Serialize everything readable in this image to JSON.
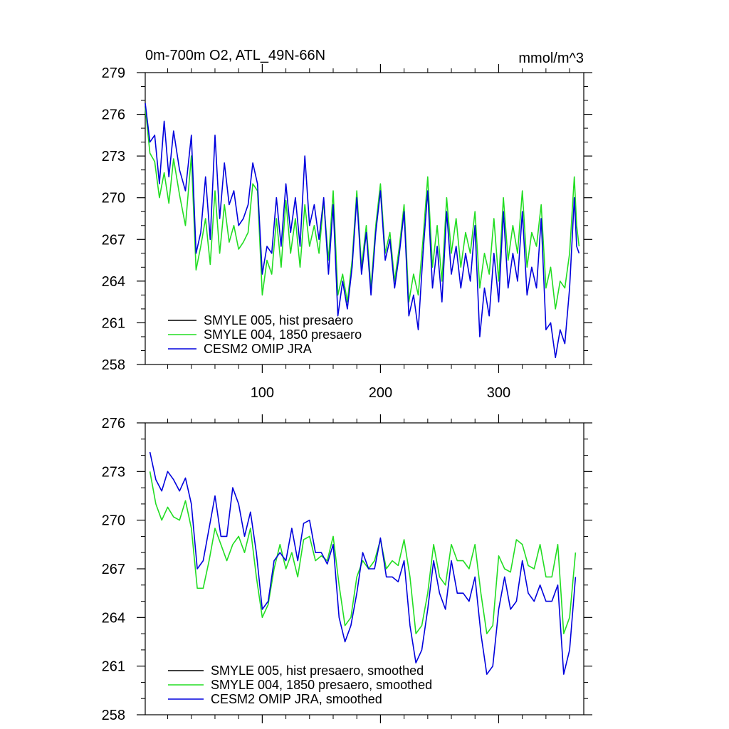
{
  "chart_data": [
    {
      "type": "line",
      "title": "0m-700m O2, ATL_49N-66N",
      "units_label": "mmol/m^3",
      "xlabel": "",
      "ylabel": "",
      "xlim": [
        1,
        372
      ],
      "ylim": [
        258,
        279
      ],
      "x_ticks": [
        100,
        200,
        300
      ],
      "x_tick_labels": [
        "100",
        "200",
        "300"
      ],
      "y_ticks": [
        279,
        276,
        273,
        270,
        267,
        264,
        261,
        258
      ],
      "y_tick_labels": [
        "279",
        "276",
        "273",
        "270",
        "267",
        "264",
        "261",
        "258"
      ],
      "legend_position": "bottom-left",
      "series": [
        {
          "name": "SMYLE 005, hist presaero",
          "color": "#000000",
          "x": [],
          "values": []
        },
        {
          "name": "SMYLE 004, 1850 presaero",
          "color": "#22dd22",
          "x": [
            1,
            5,
            9,
            13,
            17,
            21,
            25,
            30,
            35,
            40,
            44,
            48,
            52,
            56,
            60,
            64,
            68,
            72,
            76,
            80,
            84,
            88,
            92,
            96,
            100,
            104,
            108,
            112,
            116,
            120,
            124,
            128,
            132,
            136,
            140,
            144,
            148,
            152,
            156,
            160,
            164,
            168,
            172,
            176,
            180,
            184,
            188,
            192,
            196,
            200,
            204,
            208,
            212,
            216,
            220,
            224,
            228,
            232,
            236,
            240,
            244,
            248,
            252,
            256,
            260,
            264,
            268,
            272,
            276,
            280,
            284,
            288,
            292,
            296,
            300,
            304,
            308,
            312,
            316,
            320,
            324,
            328,
            332,
            336,
            340,
            344,
            348,
            352,
            356,
            360,
            364,
            366,
            368
          ],
          "values": [
            276.5,
            273.2,
            272.6,
            270.0,
            271.8,
            269.6,
            272.8,
            270.2,
            268.0,
            273.0,
            264.8,
            266.5,
            268.5,
            265.2,
            270.5,
            266.0,
            269.5,
            266.8,
            268.0,
            266.3,
            266.8,
            267.5,
            271.0,
            270.5,
            263.0,
            265.5,
            264.5,
            268.5,
            265.0,
            269.8,
            266.0,
            268.5,
            265.0,
            269.5,
            266.5,
            268.0,
            266.0,
            269.8,
            265.5,
            270.5,
            263.0,
            264.5,
            262.5,
            265.5,
            270.5,
            265.0,
            268.0,
            263.5,
            268.0,
            271.0,
            266.0,
            267.5,
            264.0,
            266.5,
            269.5,
            262.5,
            264.5,
            263.0,
            267.0,
            271.5,
            265.0,
            268.0,
            264.0,
            270.0,
            266.0,
            268.5,
            265.0,
            267.5,
            266.0,
            269.0,
            263.5,
            266.0,
            264.5,
            268.5,
            264.0,
            270.0,
            265.5,
            268.0,
            266.0,
            270.5,
            265.0,
            267.5,
            266.5,
            269.5,
            263.5,
            265.0,
            262.0,
            264.0,
            263.5,
            266.0,
            271.5,
            268.0,
            266.5
          ]
        },
        {
          "name": "CESM2 OMIP JRA",
          "color": "#0000dd",
          "x": [
            1,
            5,
            9,
            13,
            17,
            21,
            25,
            30,
            35,
            40,
            44,
            48,
            52,
            56,
            60,
            64,
            68,
            72,
            76,
            80,
            84,
            88,
            92,
            96,
            100,
            104,
            108,
            112,
            116,
            120,
            124,
            128,
            132,
            136,
            140,
            144,
            148,
            152,
            156,
            160,
            164,
            168,
            172,
            176,
            180,
            184,
            188,
            192,
            196,
            200,
            204,
            208,
            212,
            216,
            220,
            224,
            228,
            232,
            236,
            240,
            244,
            248,
            252,
            256,
            260,
            264,
            268,
            272,
            276,
            280,
            284,
            288,
            292,
            296,
            300,
            304,
            308,
            312,
            316,
            320,
            324,
            328,
            332,
            336,
            340,
            344,
            348,
            352,
            356,
            360,
            364,
            366,
            368
          ],
          "values": [
            276.8,
            274.0,
            274.5,
            271.0,
            275.5,
            271.5,
            274.8,
            272.0,
            270.5,
            274.5,
            266.0,
            267.5,
            271.5,
            267.0,
            274.5,
            268.5,
            272.5,
            269.5,
            270.5,
            268.0,
            268.5,
            269.5,
            272.5,
            271.0,
            264.5,
            266.5,
            266.0,
            270.0,
            266.5,
            271.0,
            267.5,
            270.0,
            266.5,
            273.0,
            268.0,
            269.5,
            267.0,
            270.0,
            264.5,
            269.5,
            261.5,
            264.0,
            262.0,
            265.0,
            270.0,
            264.5,
            267.5,
            263.0,
            267.5,
            270.5,
            265.5,
            267.0,
            263.5,
            266.0,
            269.0,
            261.5,
            263.0,
            260.5,
            266.0,
            270.5,
            263.5,
            266.5,
            262.5,
            269.0,
            264.5,
            266.5,
            263.5,
            266.0,
            264.0,
            268.0,
            260.0,
            263.5,
            261.5,
            266.0,
            262.5,
            269.0,
            263.5,
            266.0,
            264.0,
            269.0,
            263.0,
            265.0,
            263.5,
            268.5,
            260.5,
            261.0,
            258.5,
            260.5,
            259.5,
            263.5,
            270.0,
            266.5,
            266.0
          ]
        }
      ]
    },
    {
      "type": "line",
      "title": "",
      "xlabel": "",
      "ylabel": "",
      "xlim": [
        1,
        372
      ],
      "ylim": [
        258,
        276
      ],
      "x_ticks": [
        100,
        200,
        300
      ],
      "x_tick_labels": [],
      "y_ticks": [
        276,
        273,
        270,
        267,
        264,
        261,
        258
      ],
      "y_tick_labels": [
        "276",
        "273",
        "270",
        "267",
        "264",
        "261",
        "258"
      ],
      "legend_position": "bottom-left",
      "series": [
        {
          "name": "SMYLE 005, hist presaero, smoothed",
          "color": "#000000",
          "x": [],
          "values": []
        },
        {
          "name": "SMYLE 004, 1850 presaero, smoothed",
          "color": "#22dd22",
          "x": [
            5,
            10,
            15,
            20,
            25,
            30,
            35,
            40,
            45,
            50,
            55,
            60,
            65,
            70,
            75,
            80,
            85,
            90,
            95,
            100,
            105,
            110,
            115,
            120,
            125,
            130,
            135,
            140,
            145,
            150,
            155,
            160,
            165,
            170,
            175,
            180,
            185,
            190,
            195,
            200,
            205,
            210,
            215,
            220,
            225,
            230,
            235,
            240,
            245,
            250,
            255,
            260,
            265,
            270,
            275,
            280,
            285,
            290,
            295,
            300,
            305,
            310,
            315,
            320,
            325,
            330,
            335,
            340,
            345,
            350,
            355,
            360,
            365
          ],
          "values": [
            273.0,
            271.0,
            270.0,
            270.8,
            270.2,
            270.0,
            271.2,
            269.5,
            265.8,
            265.8,
            267.5,
            269.5,
            268.5,
            267.5,
            268.5,
            269.0,
            268.0,
            269.5,
            266.5,
            264.0,
            264.8,
            267.0,
            268.5,
            267.0,
            268.0,
            266.5,
            268.8,
            269.0,
            267.5,
            267.8,
            267.5,
            269.0,
            266.0,
            263.5,
            264.0,
            266.5,
            267.5,
            267.0,
            267.5,
            268.8,
            267.0,
            267.5,
            267.2,
            268.8,
            266.5,
            263.0,
            263.5,
            265.5,
            268.5,
            266.5,
            266.0,
            268.5,
            267.5,
            267.5,
            267.0,
            268.5,
            265.5,
            263.0,
            263.5,
            267.8,
            267.0,
            266.8,
            268.8,
            268.5,
            267.2,
            267.0,
            268.5,
            266.5,
            266.5,
            268.5,
            263.0,
            264.0,
            268.0
          ]
        },
        {
          "name": "CESM2 OMIP JRA, smoothed",
          "color": "#0000dd",
          "x": [
            5,
            10,
            15,
            20,
            25,
            30,
            35,
            40,
            45,
            50,
            55,
            60,
            65,
            70,
            75,
            80,
            85,
            90,
            95,
            100,
            105,
            110,
            115,
            120,
            125,
            130,
            135,
            140,
            145,
            150,
            155,
            160,
            165,
            170,
            175,
            180,
            185,
            190,
            195,
            200,
            205,
            210,
            215,
            220,
            225,
            230,
            235,
            240,
            245,
            250,
            255,
            260,
            265,
            270,
            275,
            280,
            285,
            290,
            295,
            300,
            305,
            310,
            315,
            320,
            325,
            330,
            335,
            340,
            345,
            350,
            355,
            360,
            365
          ],
          "values": [
            274.2,
            272.5,
            271.8,
            273.0,
            272.5,
            271.8,
            272.6,
            271.0,
            267.0,
            267.5,
            269.5,
            271.5,
            269.0,
            269.0,
            272.0,
            271.0,
            269.0,
            270.5,
            268.0,
            264.5,
            265.0,
            267.5,
            268.0,
            267.5,
            269.5,
            267.5,
            269.8,
            270.0,
            268.0,
            268.0,
            267.3,
            268.5,
            264.0,
            262.5,
            263.5,
            265.5,
            268.0,
            267.0,
            267.0,
            268.9,
            266.5,
            266.5,
            266.2,
            267.5,
            263.5,
            261.2,
            262.0,
            264.5,
            267.5,
            265.5,
            264.5,
            267.5,
            265.5,
            265.5,
            265.0,
            266.5,
            263.0,
            260.5,
            261.0,
            264.5,
            266.5,
            264.5,
            265.0,
            267.5,
            265.5,
            265.0,
            266.0,
            265.0,
            265.0,
            266.0,
            260.5,
            262.0,
            266.5
          ]
        }
      ]
    }
  ]
}
